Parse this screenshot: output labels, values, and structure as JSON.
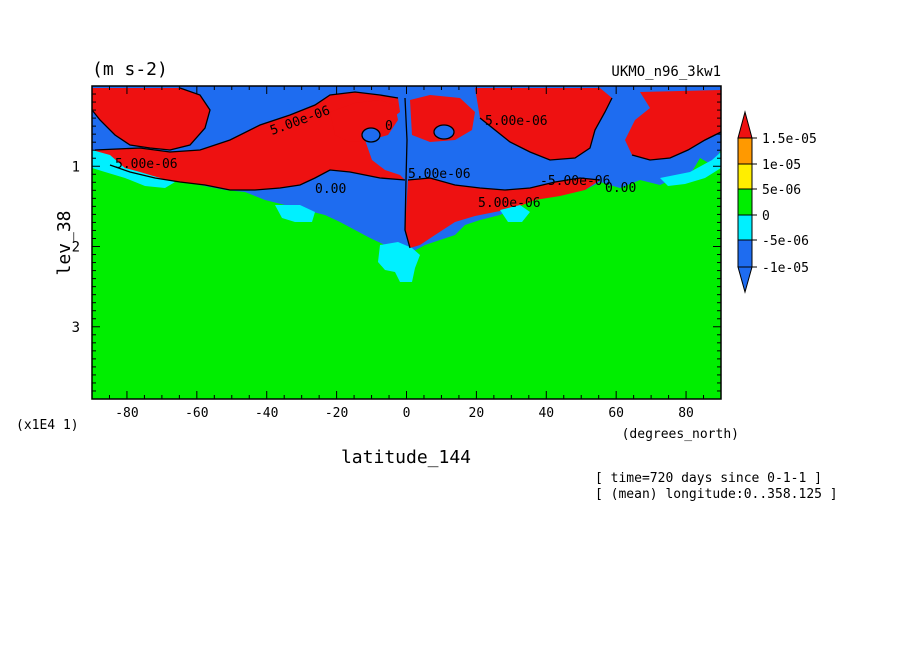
{
  "chart_data": {
    "type": "heatmap",
    "units_label": "(m s-2)",
    "model_label": "UKMO_n96_3kw1",
    "xlabel": "latitude_144",
    "xlabel_units": "(degrees_north)",
    "ylabel": "lev_38",
    "ylabel_scale": "(x1E4 1)",
    "x_ticks": [
      -80,
      -60,
      -40,
      -20,
      0,
      20,
      40,
      60,
      80
    ],
    "x_tick_labels": [
      "-80",
      "-60",
      "-40",
      "-20",
      "0",
      "20",
      "40",
      "60",
      "80"
    ],
    "xlim": [
      -90,
      90
    ],
    "y_ticks": [
      1,
      2,
      3
    ],
    "y_tick_labels": [
      "1",
      "2",
      "3"
    ],
    "ylim": [
      0,
      3.9
    ],
    "y_inverted": true,
    "info_lines": [
      "[ time=720 days since 0-1-1 ]",
      "[ (mean) longitude:0..358.125 ]"
    ],
    "colorbar": {
      "levels": [
        {
          "label": "",
          "color": "#1e6cf0"
        },
        {
          "label": "-1e-05",
          "color": "#1e6cf0"
        },
        {
          "label": "-5e-06",
          "color": "#00f0ff"
        },
        {
          "label": "0",
          "color": "#00ee00"
        },
        {
          "label": "5e-06",
          "color": "#ffee00"
        },
        {
          "label": "1e-05",
          "color": "#ff9900"
        },
        {
          "label": "1.5e-05",
          "color": "#ee1111"
        }
      ],
      "ticks": [
        "1.5e-05",
        "1e-05",
        "5e-06",
        "0",
        "-5e-06",
        "-1e-05"
      ]
    },
    "contour_labels": [
      "5.00e-06",
      "0.00",
      "-5.00e-06",
      "0"
    ],
    "colors": {
      "red": "#ee1111",
      "blue": "#1e6cf0",
      "cyan": "#00f0ff",
      "green": "#00ee00"
    }
  }
}
